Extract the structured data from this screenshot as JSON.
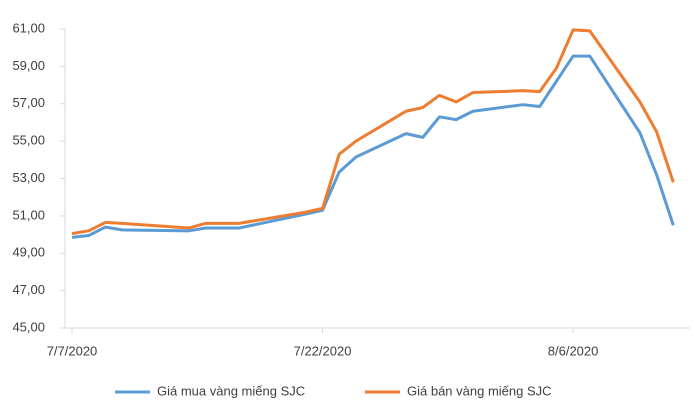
{
  "chart_data": {
    "type": "line",
    "x": [
      "7/7/2020",
      "7/8/2020",
      "7/9/2020",
      "7/10/2020",
      "7/14/2020",
      "7/15/2020",
      "7/17/2020",
      "7/21/2020",
      "7/22/2020",
      "7/23/2020",
      "7/24/2020",
      "7/27/2020",
      "7/28/2020",
      "7/29/2020",
      "7/30/2020",
      "7/31/2020",
      "8/3/2020",
      "8/4/2020",
      "8/5/2020",
      "8/6/2020",
      "8/7/2020",
      "8/10/2020",
      "8/11/2020",
      "8/12/2020"
    ],
    "series": [
      {
        "name": "Giá mua vàng miếng SJC",
        "color": "#5b9bd5",
        "values": [
          49.85,
          49.95,
          50.4,
          50.25,
          50.2,
          50.35,
          50.35,
          51.1,
          51.3,
          53.35,
          54.15,
          55.4,
          55.2,
          56.3,
          56.15,
          56.6,
          56.95,
          56.85,
          58.2,
          59.55,
          59.55,
          55.45,
          53.2,
          50.5
        ]
      },
      {
        "name": "Giá bán vàng miếng SJC",
        "color": "#ed7d31",
        "values": [
          50.05,
          50.2,
          50.65,
          50.6,
          50.35,
          50.6,
          50.6,
          51.2,
          51.4,
          54.3,
          55.0,
          56.6,
          56.8,
          57.45,
          57.1,
          57.6,
          57.7,
          57.65,
          58.9,
          60.95,
          60.9,
          57.1,
          55.5,
          52.8
        ]
      }
    ],
    "xlim": [
      "7/7/2020",
      "8/13/2020"
    ],
    "xticks": [
      "7/7/2020",
      "7/22/2020",
      "8/6/2020"
    ],
    "ylim": [
      45,
      61
    ],
    "yticks": [
      {
        "value": 45,
        "label": "45,00"
      },
      {
        "value": 47,
        "label": "47,00"
      },
      {
        "value": 49,
        "label": "49,00"
      },
      {
        "value": 51,
        "label": "51,00"
      },
      {
        "value": 53,
        "label": "53,00"
      },
      {
        "value": 55,
        "label": "55,00"
      },
      {
        "value": 57,
        "label": "57,00"
      },
      {
        "value": 59,
        "label": "59,00"
      },
      {
        "value": 61,
        "label": "61,00"
      }
    ],
    "legend": "bottom"
  }
}
